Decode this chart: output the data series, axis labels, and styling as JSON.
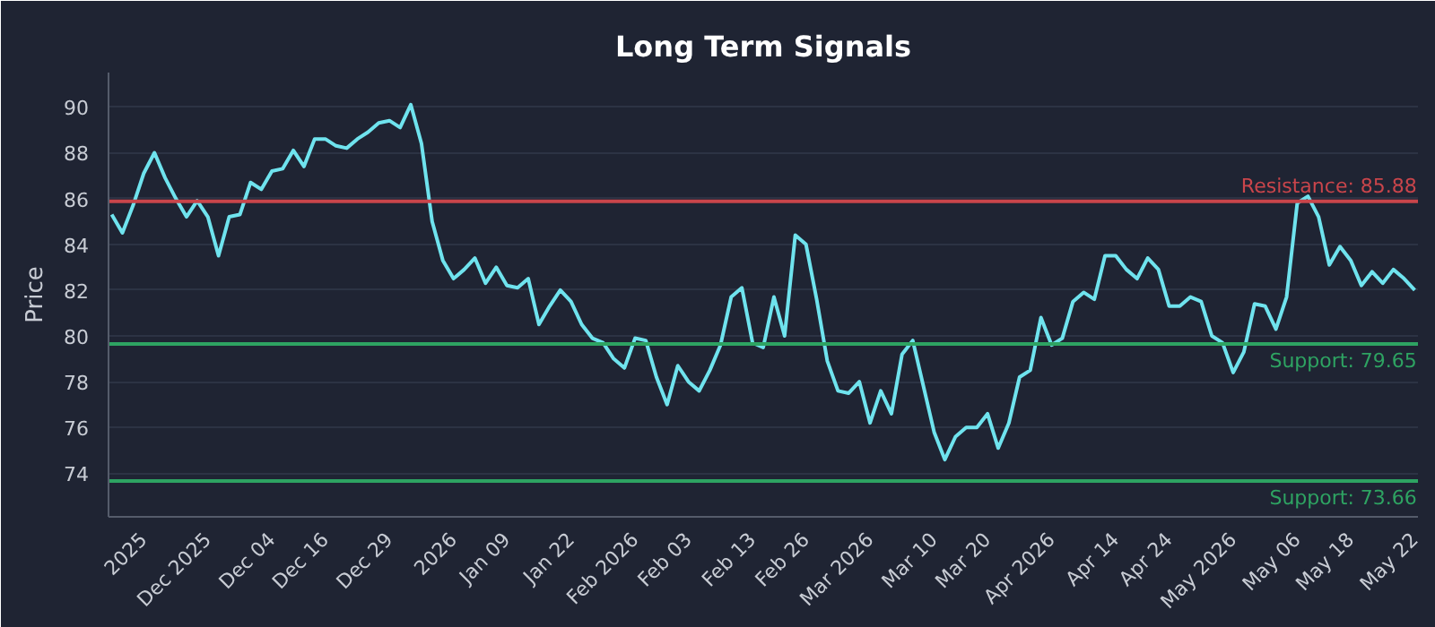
{
  "chart_data": {
    "type": "line",
    "title": "Long Term Signals",
    "ylabel": "Price",
    "categories": [
      null,
      null,
      null,
      "2025",
      null,
      null,
      null,
      null,
      null,
      "Dec 2025",
      null,
      null,
      null,
      null,
      null,
      "Dec 04",
      null,
      null,
      null,
      null,
      "Dec 16",
      null,
      null,
      null,
      null,
      null,
      "Dec 29",
      null,
      null,
      null,
      null,
      null,
      "2026",
      null,
      null,
      null,
      null,
      "Jan 09",
      null,
      null,
      null,
      null,
      null,
      "Jan 22",
      null,
      null,
      null,
      null,
      null,
      "Feb 2026",
      null,
      null,
      null,
      null,
      "Feb 03",
      null,
      null,
      null,
      null,
      null,
      "Feb 13",
      null,
      null,
      null,
      null,
      "Feb 26",
      null,
      null,
      null,
      null,
      null,
      "Mar 2026",
      null,
      null,
      null,
      null,
      null,
      "Mar 10",
      null,
      null,
      null,
      null,
      "Mar 20",
      null,
      null,
      null,
      null,
      null,
      "Apr 2026",
      null,
      null,
      null,
      null,
      null,
      "Apr 14",
      null,
      null,
      null,
      null,
      "Apr 24",
      null,
      null,
      null,
      null,
      null,
      "May 2026",
      null,
      null,
      null,
      null,
      null,
      "May 06",
      null,
      null,
      null,
      null,
      "May 18",
      null,
      null,
      null,
      null,
      null,
      "May 22"
    ],
    "series": [
      {
        "color": "#6fe3ee",
        "values": [
          85.3,
          84.5,
          85.7,
          87.1,
          88.0,
          86.9,
          86.0,
          85.2,
          85.9,
          85.2,
          83.5,
          85.2,
          85.3,
          86.7,
          86.4,
          87.2,
          87.3,
          88.1,
          87.4,
          88.6,
          88.6,
          88.3,
          88.2,
          88.6,
          88.9,
          89.3,
          89.4,
          89.1,
          90.1,
          88.4,
          85.0,
          83.3,
          82.5,
          82.9,
          83.4,
          82.3,
          83.0,
          82.2,
          82.1,
          82.5,
          80.5,
          81.3,
          82.0,
          81.5,
          80.5,
          79.9,
          79.7,
          79.0,
          78.6,
          79.9,
          79.8,
          78.2,
          77.0,
          78.7,
          78.0,
          77.6,
          78.5,
          79.6,
          81.7,
          82.1,
          79.7,
          79.5,
          81.7,
          80.0,
          84.4,
          84.0,
          81.6,
          78.9,
          77.6,
          77.5,
          78.0,
          76.2,
          77.6,
          76.6,
          79.2,
          79.8,
          77.8,
          75.8,
          74.6,
          75.6,
          76.0,
          76.0,
          76.6,
          75.1,
          76.2,
          78.2,
          78.5,
          80.8,
          79.6,
          79.9,
          81.5,
          81.9,
          81.6,
          83.5,
          83.5,
          82.9,
          82.5,
          83.4,
          82.9,
          81.3,
          81.3,
          81.7,
          81.5,
          80.0,
          79.7,
          78.4,
          79.3,
          81.4,
          81.3,
          80.3,
          81.7,
          85.8,
          86.1,
          85.2,
          83.1,
          83.9,
          83.3,
          82.2,
          82.8,
          82.3,
          82.9,
          82.5,
          82.0
        ]
      }
    ],
    "ylim": [
      72.1,
      91.5
    ],
    "yticks": [
      74,
      76,
      78,
      80,
      82,
      84,
      86,
      88,
      90
    ],
    "grid": "y",
    "marker": "none",
    "line_style": "solid",
    "ref_lines": [
      {
        "axis": "y",
        "value": 85.88,
        "label": "Resistance: 85.88",
        "color": "#c9454b"
      },
      {
        "axis": "y",
        "value": 79.65,
        "label": "Support: 79.65",
        "color": "#2ea362"
      },
      {
        "axis": "y",
        "value": 73.66,
        "label": "Support: 73.66",
        "color": "#2ea362"
      }
    ]
  }
}
